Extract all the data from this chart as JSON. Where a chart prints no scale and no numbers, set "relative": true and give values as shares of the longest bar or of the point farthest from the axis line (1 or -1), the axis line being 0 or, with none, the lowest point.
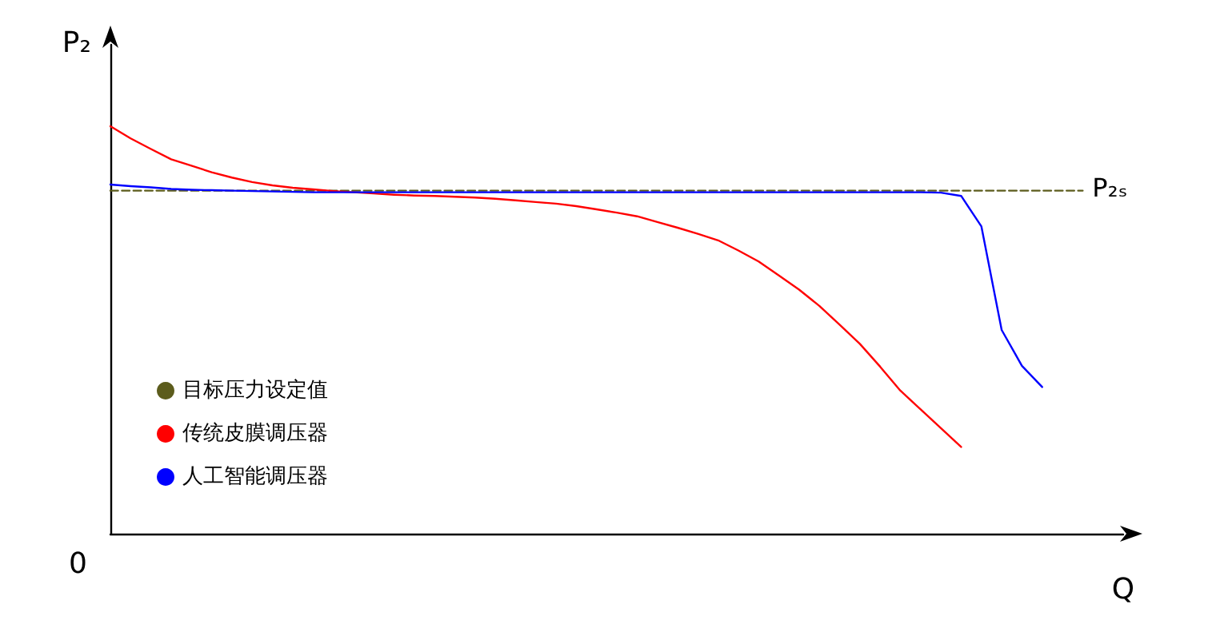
{
  "chart_data": {
    "type": "line",
    "relative": true,
    "xlabel": "Q",
    "ylabel": "P₂",
    "grid": false,
    "legend": "left",
    "categories": [
      null,
      null,
      null,
      null,
      null,
      null,
      null,
      null,
      null,
      null,
      null,
      null,
      null,
      null,
      null,
      null,
      null,
      null,
      null,
      null,
      null,
      null,
      null,
      null,
      null,
      null,
      null,
      null,
      null,
      null,
      null,
      null,
      null,
      null,
      null,
      null,
      null,
      null,
      null,
      null,
      null,
      null,
      null,
      null,
      null,
      null,
      null,
      null,
      null,
      null,
      null
    ],
    "annotations": [
      "0",
      "P₂ₛ"
    ],
    "series": [
      {
        "name": "目标压力设定值",
        "color": "#5c5c1c",
        "line_style": "dashed",
        "values": [
          0.842,
          0.842,
          0.842,
          0.842,
          0.842,
          0.842,
          0.842,
          0.842,
          0.842,
          0.842,
          0.842,
          0.842,
          0.842,
          0.842,
          0.842,
          0.842,
          0.842,
          0.842,
          0.842,
          0.842,
          0.842,
          0.842,
          0.842,
          0.842,
          0.842,
          0.842,
          0.842,
          0.842,
          0.842,
          0.842,
          0.842,
          0.842,
          0.842,
          0.842,
          0.842,
          0.842,
          0.842,
          0.842,
          0.842,
          0.842,
          0.842,
          0.842,
          0.842,
          0.842,
          0.842,
          0.842,
          0.842,
          0.842,
          0.842,
          null,
          null
        ]
      },
      {
        "name": "传统皮膜调压器",
        "color": "#ff0000",
        "line_style": "solid",
        "values": [
          1,
          0.97,
          0.944,
          0.919,
          0.903,
          0.887,
          0.874,
          0.863,
          0.855,
          0.849,
          0.845,
          0.841,
          0.838,
          0.835,
          0.832,
          0.83,
          0.829,
          0.827,
          0.825,
          0.822,
          0.818,
          0.814,
          0.81,
          0.804,
          0.796,
          0.788,
          0.779,
          0.765,
          0.751,
          0.736,
          0.72,
          0.695,
          0.668,
          0.634,
          0.599,
          0.559,
          0.513,
          0.466,
          0.41,
          0.351,
          0.305,
          0.259,
          0.213,
          null,
          null,
          null,
          null,
          null,
          null,
          null,
          null
        ]
      },
      {
        "name": "人工智能调压器",
        "color": "#0000ff",
        "line_style": "solid",
        "values": [
          0.857,
          0.853,
          0.85,
          0.846,
          0.844,
          0.843,
          0.842,
          0.841,
          0.84,
          0.839,
          0.838,
          0.838,
          0.838,
          0.838,
          0.838,
          0.838,
          0.838,
          0.838,
          0.838,
          0.838,
          0.838,
          0.838,
          0.838,
          0.838,
          0.838,
          0.838,
          0.838,
          0.838,
          0.838,
          0.838,
          0.838,
          0.838,
          0.838,
          0.838,
          0.838,
          0.838,
          0.838,
          0.838,
          0.838,
          0.838,
          0.838,
          0.837,
          0.829,
          0.754,
          0.5,
          0.412,
          0.36,
          null,
          null,
          null,
          null
        ]
      }
    ]
  }
}
